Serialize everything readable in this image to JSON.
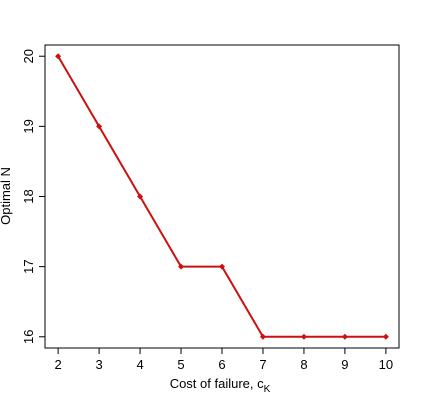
{
  "chart_data": {
    "type": "line",
    "xlabel": "Cost of failure, c",
    "xlabel_subscript": "K",
    "ylabel": "Optimal N",
    "x": [
      2,
      3,
      4,
      5,
      6,
      7,
      8,
      9,
      10
    ],
    "series": [
      {
        "color": "#cc1111",
        "values": [
          20,
          19,
          18,
          17,
          17,
          16,
          16,
          16,
          16
        ]
      }
    ],
    "xlim": [
      1.68,
      10.32
    ],
    "ylim": [
      15.84,
      20.16
    ],
    "xticks": [
      2,
      3,
      4,
      5,
      6,
      7,
      8,
      9,
      10
    ],
    "yticks": [
      16,
      17,
      18,
      19,
      20
    ]
  }
}
